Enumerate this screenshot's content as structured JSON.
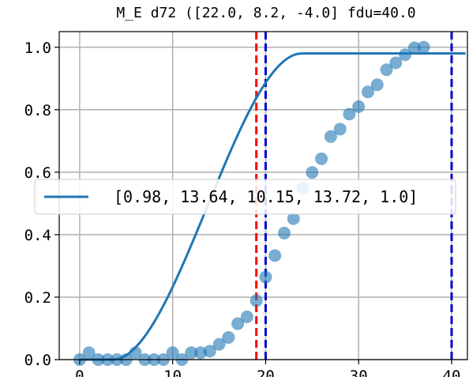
{
  "chart_data": {
    "type": "scatter",
    "title": "M_E d72 ([22.0, 8.2, -4.0] fdu=40.0",
    "xlabel": "",
    "ylabel": "",
    "xlim": [
      -2.2,
      41.7
    ],
    "ylim": [
      0.0,
      1.05
    ],
    "grid": true,
    "xticks": [
      0,
      10,
      20,
      30,
      40
    ],
    "yticks": [
      0.0,
      0.2,
      0.4,
      0.6,
      0.8,
      1.0
    ],
    "xtick_labels": [
      "0",
      "10",
      "20",
      "30",
      "40"
    ],
    "ytick_labels": [
      "0.0",
      "0.2",
      "0.4",
      "0.6",
      "0.8",
      "1.0"
    ],
    "legend": {
      "placement": "center-left",
      "entries": [
        {
          "label": "[0.98, 13.64, 10.15, 13.72, 1.0]",
          "color": "#1f77b4",
          "marker": "line"
        }
      ]
    },
    "scatter_series": {
      "color": "#1f77b4",
      "alpha": 0.6,
      "x": [
        0,
        1,
        2,
        3,
        4,
        5,
        6,
        7,
        8,
        9,
        10,
        11,
        12,
        13,
        14,
        15,
        16,
        17,
        18,
        19,
        20,
        21,
        22,
        23,
        24,
        25,
        26,
        27,
        28,
        29,
        30,
        31,
        32,
        33,
        34,
        35,
        36,
        37
      ],
      "y": [
        0.0,
        0.022,
        0.0,
        0.0,
        0.0,
        0.0,
        0.022,
        0.0,
        0.0,
        0.0,
        0.022,
        0.0,
        0.022,
        0.022,
        0.027,
        0.049,
        0.071,
        0.115,
        0.137,
        0.189,
        0.264,
        0.333,
        0.405,
        0.451,
        0.549,
        0.599,
        0.643,
        0.714,
        0.738,
        0.786,
        0.81,
        0.857,
        0.88,
        0.928,
        0.95,
        0.976,
        0.998,
        1.0
      ]
    },
    "fit_curve": {
      "color": "#1f77b4",
      "params": [
        0.98,
        13.64,
        10.15,
        13.72,
        1.0
      ],
      "x_start": 0,
      "x_end": 41.5
    },
    "vlines": [
      {
        "x": 19.0,
        "color": "#ff0000",
        "style": "dashed"
      },
      {
        "x": 20.0,
        "color": "#0000cc",
        "style": "dashed"
      },
      {
        "x": 40.0,
        "color": "#0000cc",
        "style": "dashed"
      }
    ]
  }
}
